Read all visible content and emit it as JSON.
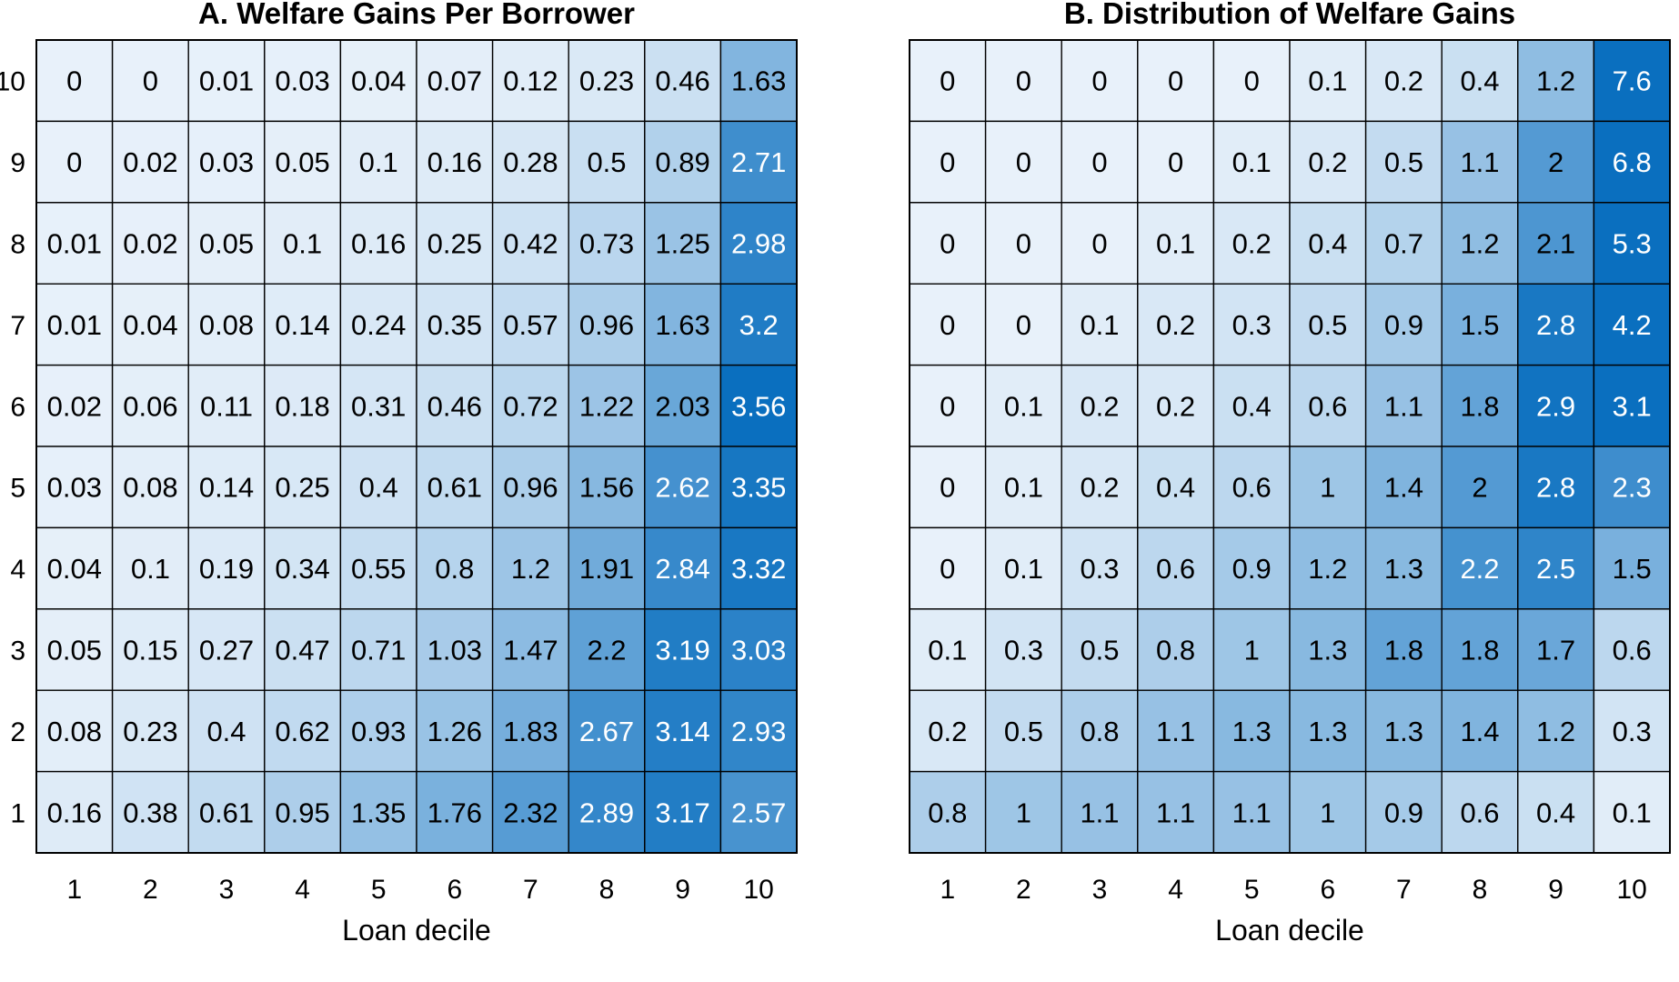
{
  "chart_data": [
    {
      "type": "heatmap",
      "title": "A. Welfare Gains Per Borrower",
      "xlabel": "Loan decile",
      "ylabel": "",
      "x": [
        "1",
        "2",
        "3",
        "4",
        "5",
        "6",
        "7",
        "8",
        "9",
        "10"
      ],
      "y": [
        "10",
        "9",
        "8",
        "7",
        "6",
        "5",
        "4",
        "3",
        "2",
        "1"
      ],
      "values": [
        [
          0,
          0,
          0.01,
          0.03,
          0.04,
          0.07,
          0.12,
          0.23,
          0.46,
          1.63
        ],
        [
          0,
          0.02,
          0.03,
          0.05,
          0.1,
          0.16,
          0.28,
          0.5,
          0.89,
          2.71
        ],
        [
          0.01,
          0.02,
          0.05,
          0.1,
          0.16,
          0.25,
          0.42,
          0.73,
          1.25,
          2.98
        ],
        [
          0.01,
          0.04,
          0.08,
          0.14,
          0.24,
          0.35,
          0.57,
          0.96,
          1.63,
          3.2
        ],
        [
          0.02,
          0.06,
          0.11,
          0.18,
          0.31,
          0.46,
          0.72,
          1.22,
          2.03,
          3.56
        ],
        [
          0.03,
          0.08,
          0.14,
          0.25,
          0.4,
          0.61,
          0.96,
          1.56,
          2.62,
          3.35
        ],
        [
          0.04,
          0.1,
          0.19,
          0.34,
          0.55,
          0.8,
          1.2,
          1.91,
          2.84,
          3.32
        ],
        [
          0.05,
          0.15,
          0.27,
          0.47,
          0.71,
          1.03,
          1.47,
          2.2,
          3.19,
          3.03
        ],
        [
          0.08,
          0.23,
          0.4,
          0.62,
          0.93,
          1.26,
          1.83,
          2.67,
          3.14,
          2.93
        ],
        [
          0.16,
          0.38,
          0.61,
          0.95,
          1.35,
          1.76,
          2.32,
          2.89,
          3.17,
          2.57
        ]
      ],
      "color_range": [
        0,
        3.56
      ],
      "colors": {
        "low": "#e8f1fa",
        "high": "#0a6fbf",
        "grid": "#000000"
      }
    },
    {
      "type": "heatmap",
      "title": "B. Distribution of Welfare Gains",
      "xlabel": "Loan decile",
      "ylabel": "",
      "x": [
        "1",
        "2",
        "3",
        "4",
        "5",
        "6",
        "7",
        "8",
        "9",
        "10"
      ],
      "y": [
        "10",
        "9",
        "8",
        "7",
        "6",
        "5",
        "4",
        "3",
        "2",
        "1"
      ],
      "values": [
        [
          0,
          0,
          0,
          0,
          0,
          0.1,
          0.2,
          0.4,
          1.2,
          7.6
        ],
        [
          0,
          0,
          0,
          0,
          0.1,
          0.2,
          0.5,
          1.1,
          2,
          6.8
        ],
        [
          0,
          0,
          0,
          0.1,
          0.2,
          0.4,
          0.7,
          1.2,
          2.1,
          5.3
        ],
        [
          0,
          0,
          0.1,
          0.2,
          0.3,
          0.5,
          0.9,
          1.5,
          2.8,
          4.2
        ],
        [
          0,
          0.1,
          0.2,
          0.2,
          0.4,
          0.6,
          1.1,
          1.8,
          2.9,
          3.1
        ],
        [
          0,
          0.1,
          0.2,
          0.4,
          0.6,
          1,
          1.4,
          2,
          2.8,
          2.3
        ],
        [
          0,
          0.1,
          0.3,
          0.6,
          0.9,
          1.2,
          1.3,
          2.2,
          2.5,
          1.5
        ],
        [
          0.1,
          0.3,
          0.5,
          0.8,
          1,
          1.3,
          1.8,
          1.8,
          1.7,
          0.6
        ],
        [
          0.2,
          0.5,
          0.8,
          1.1,
          1.3,
          1.3,
          1.3,
          1.4,
          1.2,
          0.3
        ],
        [
          0.8,
          1,
          1.1,
          1.1,
          1.1,
          1,
          0.9,
          0.6,
          0.4,
          0.1
        ]
      ],
      "color_range": [
        0,
        3.0
      ],
      "colors": {
        "low": "#e8f1fa",
        "high": "#0a6fbf",
        "grid": "#000000"
      }
    }
  ]
}
